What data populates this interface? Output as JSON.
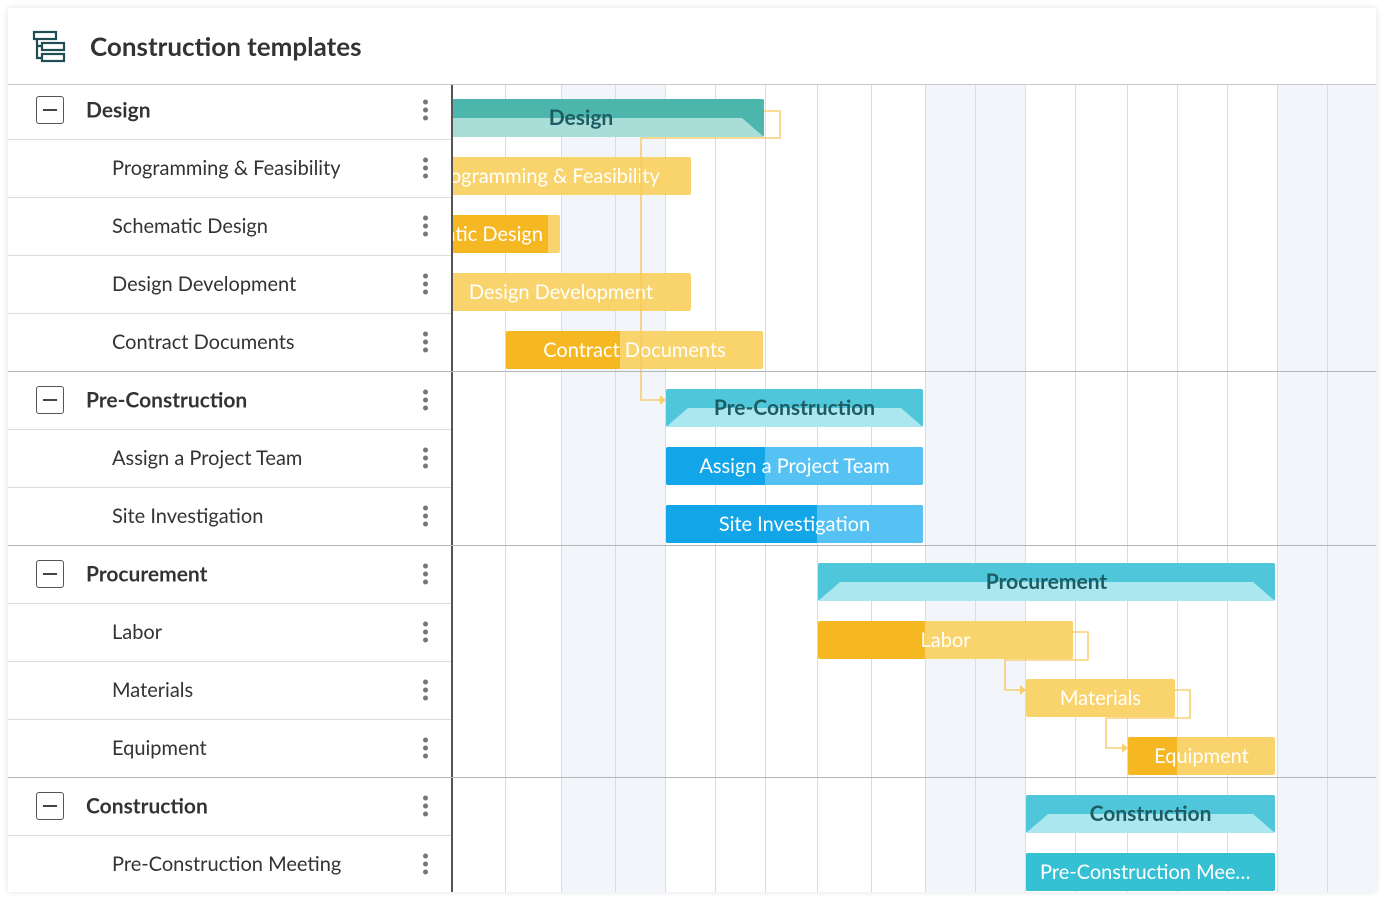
{
  "header": {
    "title": "Construction templates"
  },
  "groups": [
    {
      "name": "Design",
      "tasks": [
        "Programming & Feasibility",
        "Schematic Design",
        "Design Development",
        "Contract Documents"
      ]
    },
    {
      "name": "Pre-Construction",
      "tasks": [
        "Assign a Project Team",
        "Site Investigation"
      ]
    },
    {
      "name": "Procurement",
      "tasks": [
        "Labor",
        "Materials",
        "Equipment"
      ]
    },
    {
      "name": "Construction",
      "tasks": [
        "Pre-Construction Meeting"
      ]
    }
  ]
}
